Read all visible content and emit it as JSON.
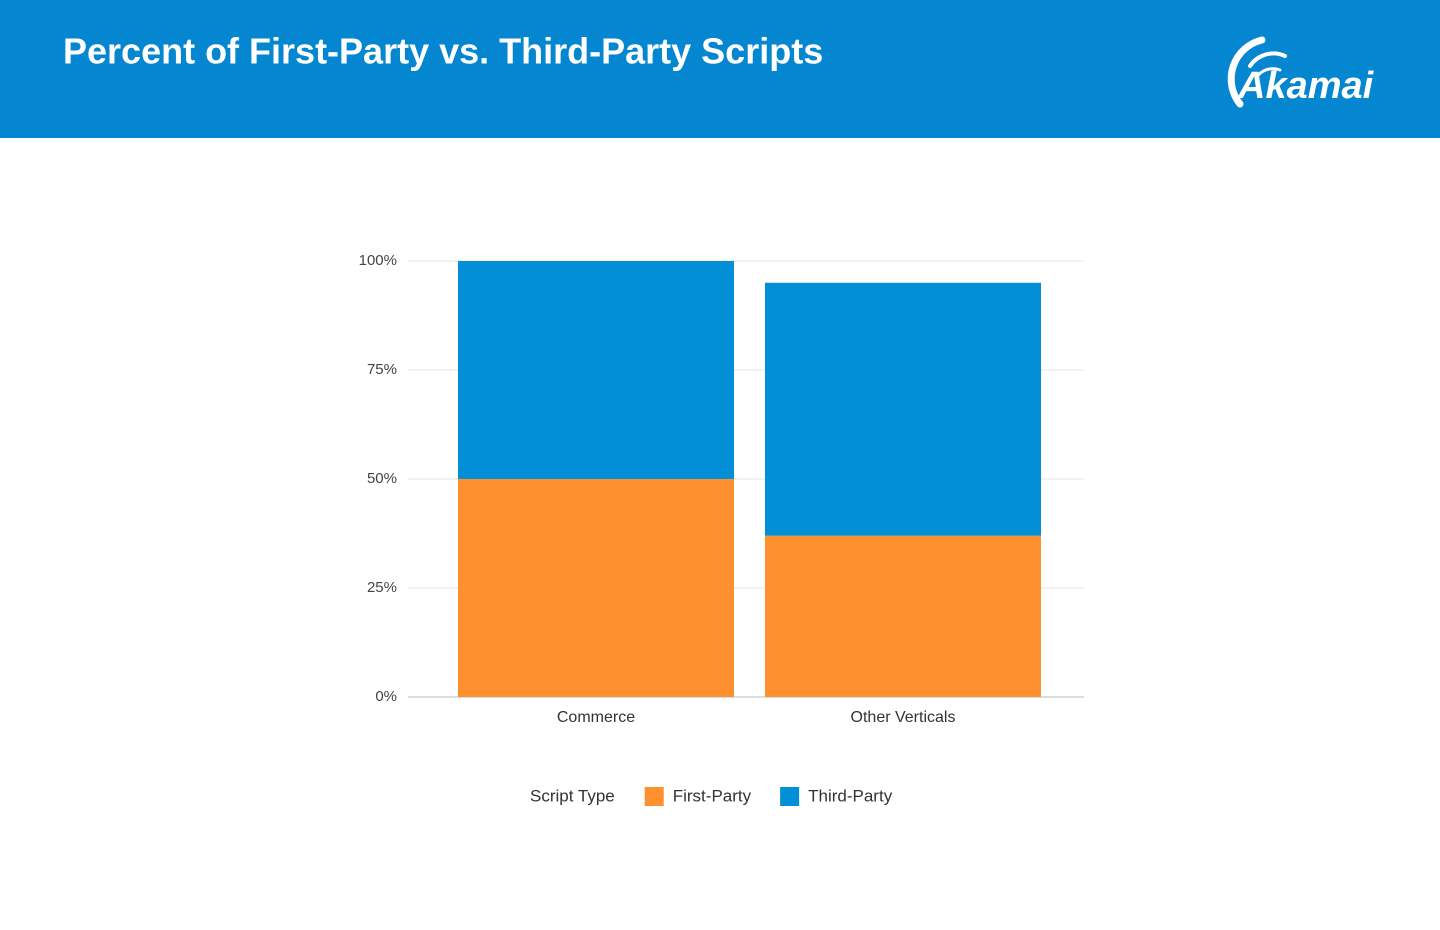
{
  "header": {
    "title": "Percent of First-Party vs. Third-Party Scripts",
    "logo": "Akamai"
  },
  "chart_data": {
    "type": "stacked_bar",
    "categories": [
      "Commerce",
      "Other Verticals"
    ],
    "series": [
      {
        "name": "First-Party",
        "color": "#fe9030",
        "values": [
          50,
          37
        ]
      },
      {
        "name": "Third-Party",
        "color": "#028fd8",
        "values": [
          50,
          58
        ]
      }
    ],
    "legend_title": "Script Type",
    "legend": "bottom",
    "ylim": [
      0,
      100
    ],
    "yticks": [
      {
        "value": 0,
        "label": "0%"
      },
      {
        "value": 25,
        "label": "25%"
      },
      {
        "value": 50,
        "label": "50%"
      },
      {
        "value": 75,
        "label": "75%"
      },
      {
        "value": 100,
        "label": "100%"
      }
    ],
    "grid": true
  }
}
